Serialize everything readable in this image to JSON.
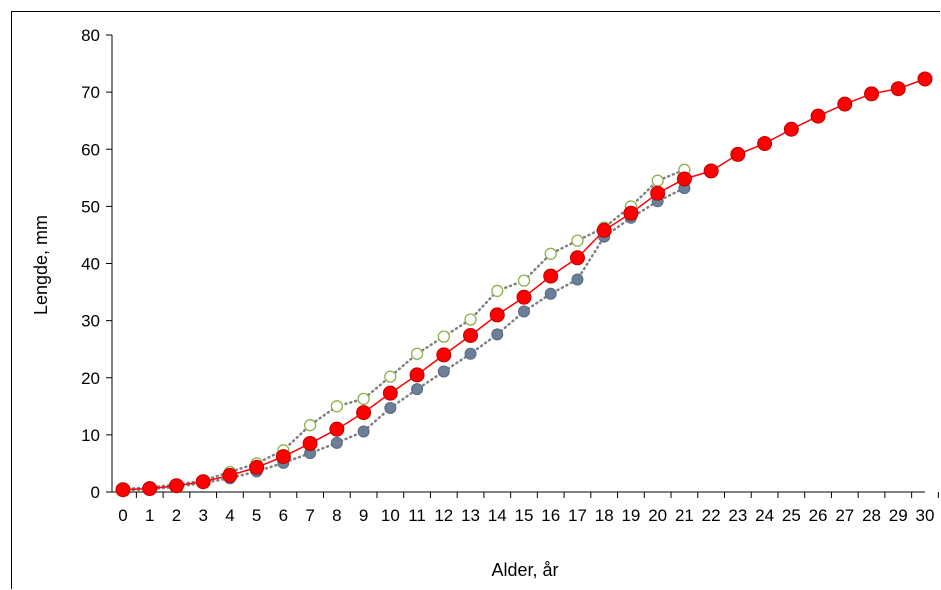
{
  "chart_data": {
    "type": "scatter",
    "xlabel": "Alder, år",
    "ylabel": "Lengde, mm",
    "xlim": [
      0,
      30
    ],
    "ylim": [
      0,
      80
    ],
    "xticks": [
      "0",
      "1",
      "2",
      "3",
      "4",
      "5",
      "6",
      "7",
      "8",
      "9",
      "10",
      "11",
      "12",
      "13",
      "14",
      "15",
      "16",
      "17",
      "18",
      "19",
      "20",
      "21",
      "22",
      "23",
      "24",
      "25",
      "26",
      "27",
      "28",
      "29",
      "30"
    ],
    "yticks": [
      "0",
      "10",
      "20",
      "30",
      "40",
      "50",
      "60",
      "70",
      "80"
    ],
    "grid": false,
    "series": [
      {
        "style": "open-circle-dotted",
        "color": "#8db04a",
        "x": [
          0,
          1,
          2,
          3,
          4,
          5,
          6,
          7,
          8,
          9,
          10,
          11,
          12,
          13,
          14,
          15,
          16,
          17,
          18,
          19,
          20,
          21
        ],
        "y": [
          0.5,
          0.8,
          1.3,
          2.0,
          3.5,
          5.0,
          7.3,
          11.7,
          15.0,
          16.3,
          20.2,
          24.2,
          27.2,
          30.2,
          35.2,
          37.0,
          41.7,
          44.0,
          46.3,
          50.0,
          54.5,
          56.4
        ]
      },
      {
        "style": "filled-dot-dotted",
        "color": "#6b7f99",
        "x": [
          0,
          1,
          2,
          3,
          4,
          5,
          6,
          7,
          8,
          9,
          10,
          11,
          12,
          13,
          14,
          15,
          16,
          17,
          18,
          19,
          20,
          21
        ],
        "y": [
          0.3,
          0.5,
          0.9,
          1.6,
          2.4,
          3.6,
          5.1,
          6.8,
          8.6,
          10.6,
          14.7,
          18.0,
          21.1,
          24.2,
          27.6,
          31.6,
          34.7,
          37.2,
          44.7,
          48.0,
          50.9,
          53.2
        ]
      },
      {
        "style": "red-dot-line",
        "color": "#ff0000",
        "x": [
          0,
          1,
          2,
          3,
          4,
          5,
          6,
          7,
          8,
          9,
          10,
          11,
          12,
          13,
          14,
          15,
          16,
          17,
          18,
          19,
          20,
          21,
          22,
          23,
          24,
          25,
          26,
          27,
          28,
          29,
          30
        ],
        "y": [
          0.4,
          0.6,
          1.1,
          1.8,
          2.9,
          4.3,
          6.2,
          8.5,
          11.0,
          13.9,
          17.3,
          20.5,
          24.0,
          27.4,
          31.0,
          34.1,
          37.8,
          41.0,
          45.8,
          48.8,
          52.3,
          54.8,
          56.2,
          59.1,
          61.0,
          63.5,
          65.8,
          67.9,
          69.7,
          70.6,
          72.3
        ]
      }
    ]
  }
}
